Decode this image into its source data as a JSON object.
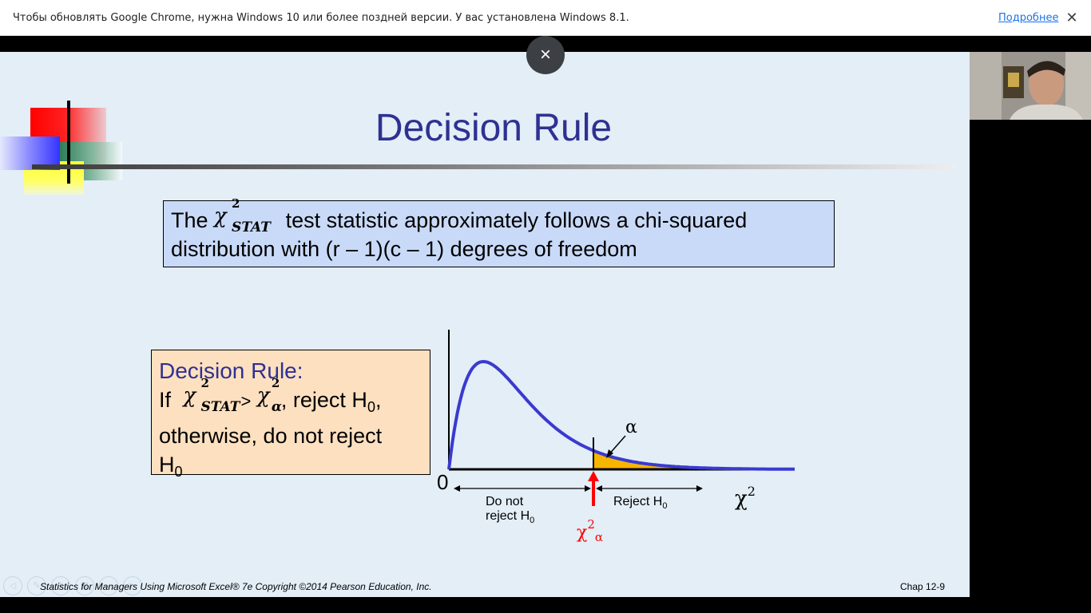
{
  "infobar": {
    "message": "Чтобы обновлять Google Chrome, нужна Windows 10 или более поздней версии. У вас установлена Windows 8.1.",
    "more_link": "Подробнее",
    "close_glyph": "✕"
  },
  "overlay": {
    "close_glyph": "×"
  },
  "slide": {
    "title": "Decision Rule",
    "stat_box": {
      "prefix": "The",
      "chi": "χ",
      "sup": "2",
      "sub": "STAT",
      "line1_rest": "test statistic approximately follows a chi-squared",
      "line2": "distribution with (r – 1)(c – 1) degrees of freedom"
    },
    "rule_box": {
      "title": "Decision Rule:",
      "if": "If",
      "chi": "χ",
      "sup": "2",
      "sub_stat": "STAT",
      "gt": ">",
      "sub_alpha": "α",
      "reject": ", reject H",
      "h_sub": "0",
      "comma": ",",
      "line3": "otherwise, do not reject",
      "line4": "H"
    },
    "footer": "Statistics for Managers Using Microsoft Excel® 7e Copyright ©2014 Pearson Education, Inc.",
    "chap": "Chap 12-9"
  },
  "chart_data": {
    "type": "area",
    "origin_label": "0",
    "alpha_label": "α",
    "axis_label": "χ",
    "axis_sup": "2",
    "critical_label": "χ",
    "critical_sup": "2",
    "critical_sub": "α",
    "region_left_line1": "Do not",
    "region_left_line2": "reject H",
    "region_left_sub": "0",
    "region_right": "Reject H",
    "region_right_sub": "0",
    "colors": {
      "curve": "#3a3acf",
      "tail": "#f7b500",
      "critical": "#ff0000"
    }
  }
}
